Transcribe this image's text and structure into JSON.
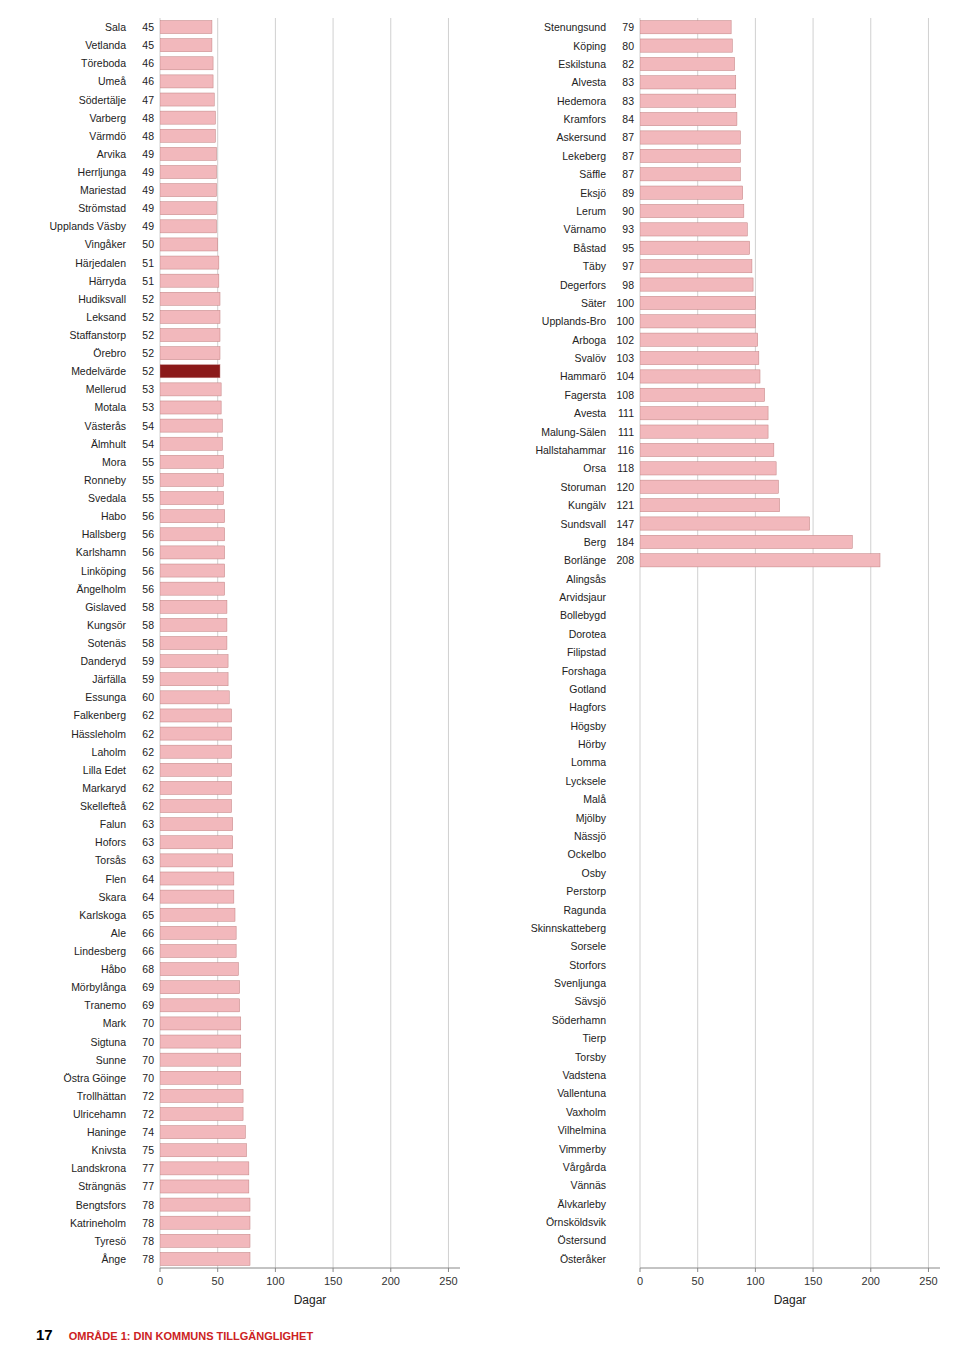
{
  "chart_data": [
    {
      "type": "bar",
      "orientation": "horizontal",
      "categories": [
        "Sala",
        "Vetlanda",
        "Töreboda",
        "Umeå",
        "Södertälje",
        "Varberg",
        "Värmdö",
        "Arvika",
        "Herrljunga",
        "Mariestad",
        "Strömstad",
        "Upplands Väsby",
        "Vingåker",
        "Härjedalen",
        "Härryda",
        "Hudiksvall",
        "Leksand",
        "Staffanstorp",
        "Örebro",
        "Medelvärde",
        "Mellerud",
        "Motala",
        "Västerås",
        "Älmhult",
        "Mora",
        "Ronneby",
        "Svedala",
        "Habo",
        "Hallsberg",
        "Karlshamn",
        "Linköping",
        "Ängelholm",
        "Gislaved",
        "Kungsör",
        "Sotenäs",
        "Danderyd",
        "Järfälla",
        "Essunga",
        "Falkenberg",
        "Hässleholm",
        "Laholm",
        "Lilla Edet",
        "Markaryd",
        "Skellefteå",
        "Falun",
        "Hofors",
        "Torsås",
        "Flen",
        "Skara",
        "Karlskoga",
        "Ale",
        "Lindesberg",
        "Håbo",
        "Mörbylånga",
        "Tranemo",
        "Mark",
        "Sigtuna",
        "Sunne",
        "Östra Göinge",
        "Trollhättan",
        "Ulricehamn",
        "Haninge",
        "Knivsta",
        "Landskrona",
        "Strängnäs",
        "Bengtsfors",
        "Katrineholm",
        "Tyresö",
        "Ånge"
      ],
      "values": [
        45,
        45,
        46,
        46,
        47,
        48,
        48,
        49,
        49,
        49,
        49,
        49,
        50,
        51,
        51,
        52,
        52,
        52,
        52,
        52,
        53,
        53,
        54,
        54,
        55,
        55,
        55,
        56,
        56,
        56,
        56,
        56,
        58,
        58,
        58,
        59,
        59,
        60,
        62,
        62,
        62,
        62,
        62,
        62,
        63,
        63,
        63,
        64,
        64,
        65,
        66,
        66,
        68,
        69,
        69,
        70,
        70,
        70,
        70,
        72,
        72,
        74,
        75,
        77,
        77,
        78,
        78,
        78,
        78
      ],
      "colors": [
        "#f2b8bc",
        "#f2b8bc",
        "#f2b8bc",
        "#f2b8bc",
        "#f2b8bc",
        "#f2b8bc",
        "#f2b8bc",
        "#f2b8bc",
        "#f2b8bc",
        "#f2b8bc",
        "#f2b8bc",
        "#f2b8bc",
        "#f2b8bc",
        "#f2b8bc",
        "#f2b8bc",
        "#f2b8bc",
        "#f2b8bc",
        "#f2b8bc",
        "#f2b8bc",
        "#8b1a1a",
        "#f2b8bc",
        "#f2b8bc",
        "#f2b8bc",
        "#f2b8bc",
        "#f2b8bc",
        "#f2b8bc",
        "#f2b8bc",
        "#f2b8bc",
        "#f2b8bc",
        "#f2b8bc",
        "#f2b8bc",
        "#f2b8bc",
        "#f2b8bc",
        "#f2b8bc",
        "#f2b8bc",
        "#f2b8bc",
        "#f2b8bc",
        "#f2b8bc",
        "#f2b8bc",
        "#f2b8bc",
        "#f2b8bc",
        "#f2b8bc",
        "#f2b8bc",
        "#f2b8bc",
        "#f2b8bc",
        "#f2b8bc",
        "#f2b8bc",
        "#f2b8bc",
        "#f2b8bc",
        "#f2b8bc",
        "#f2b8bc",
        "#f2b8bc",
        "#f2b8bc",
        "#f2b8bc",
        "#f2b8bc",
        "#f2b8bc",
        "#f2b8bc",
        "#f2b8bc",
        "#f2b8bc",
        "#f2b8bc",
        "#f2b8bc",
        "#f2b8bc",
        "#f2b8bc",
        "#f2b8bc",
        "#f2b8bc",
        "#f2b8bc",
        "#f2b8bc",
        "#f2b8bc",
        "#f2b8bc"
      ],
      "xlabel": "Dagar",
      "xlim": [
        0,
        260
      ],
      "xticks": [
        0,
        50,
        100,
        150,
        200,
        250
      ],
      "grid": true,
      "data_labels": true,
      "annotations": [
        {
          "text": "17"
        },
        {
          "text": "OMRÅDE 1: DIN KOMMUNS TILLGÄNGLIGHET",
          "color": "#cc2222"
        }
      ]
    },
    {
      "type": "bar",
      "orientation": "horizontal",
      "categories": [
        "Stenungsund",
        "Köping",
        "Eskilstuna",
        "Alvesta",
        "Hedemora",
        "Kramfors",
        "Askersund",
        "Lekeberg",
        "Säffle",
        "Eksjö",
        "Lerum",
        "Värnamo",
        "Båstad",
        "Täby",
        "Degerfors",
        "Säter",
        "Upplands-Bro",
        "Arboga",
        "Svalöv",
        "Hammarö",
        "Fagersta",
        "Avesta",
        "Malung-Sälen",
        "Hallstahammar",
        "Orsa",
        "Storuman",
        "Kungälv",
        "Sundsvall",
        "Berg",
        "Borlänge",
        "Alingsås",
        "Arvidsjaur",
        "Bollebygd",
        "Dorotea",
        "Filipstad",
        "Forshaga",
        "Gotland",
        "Hagfors",
        "Högsby",
        "Hörby",
        "Lomma",
        "Lycksele",
        "Malå",
        "Mjölby",
        "Nässjö",
        "Ockelbo",
        "Osby",
        "Perstorp",
        "Ragunda",
        "Skinnskatteberg",
        "Sorsele",
        "Storfors",
        "Svenljunga",
        "Sävsjö",
        "Söderhamn",
        "Tierp",
        "Torsby",
        "Vadstena",
        "Vallentuna",
        "Vaxholm",
        "Vilhelmina",
        "Vimmerby",
        "Vårgårda",
        "Vännäs",
        "Älvkarleby",
        "Örnsköldsvik",
        "Östersund",
        "Österåker"
      ],
      "values": [
        79,
        80,
        82,
        83,
        83,
        84,
        87,
        87,
        87,
        89,
        90,
        93,
        95,
        97,
        98,
        100,
        100,
        102,
        103,
        104,
        108,
        111,
        111,
        116,
        118,
        120,
        121,
        147,
        184,
        208,
        0,
        0,
        0,
        0,
        0,
        0,
        0,
        0,
        0,
        0,
        0,
        0,
        0,
        0,
        0,
        0,
        0,
        0,
        0,
        0,
        0,
        0,
        0,
        0,
        0,
        0,
        0,
        0,
        0,
        0,
        0,
        0,
        0,
        0,
        0,
        0,
        0,
        0
      ],
      "value_labels": [
        "79",
        "80",
        "82",
        "83",
        "83",
        "84",
        "87",
        "87",
        "87",
        "89",
        "90",
        "93",
        "95",
        "97",
        "98",
        "100",
        "100",
        "102",
        "103",
        "104",
        "108",
        "111",
        "111",
        "116",
        "118",
        "120",
        "121",
        "147",
        "184",
        "208",
        null,
        null,
        null,
        null,
        null,
        null,
        null,
        null,
        null,
        null,
        null,
        null,
        null,
        null,
        null,
        null,
        null,
        null,
        null,
        null,
        null,
        null,
        null,
        null,
        null,
        null,
        null,
        null,
        null,
        null,
        null,
        null,
        null,
        null,
        null,
        null,
        null,
        null
      ],
      "color": "#f2b8bc",
      "xlabel": "Dagar",
      "xlim": [
        0,
        260
      ],
      "xticks": [
        0,
        50,
        100,
        150,
        200,
        250
      ],
      "grid": true,
      "data_labels": true
    }
  ]
}
